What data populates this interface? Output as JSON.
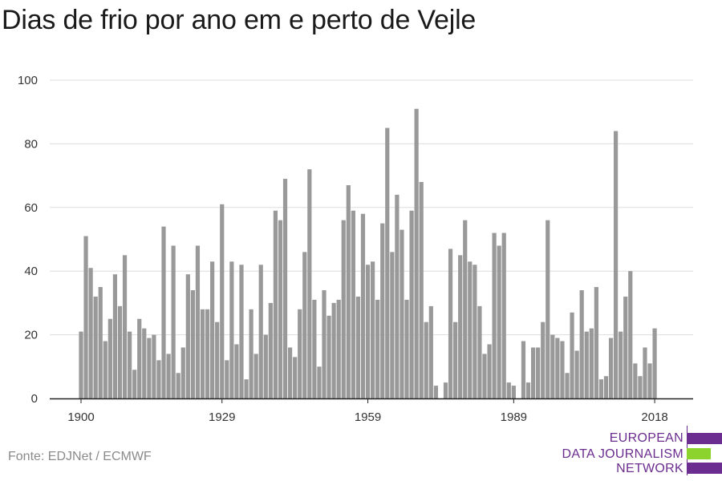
{
  "title": "Dias de frio por ano em e perto de Vejle",
  "source": "Fonte: EDJNet / ECMWF",
  "logo": {
    "lines": [
      "EUROPEAN",
      "DATA JOURNALISM",
      "NETWORK"
    ],
    "colors": [
      "#6b2d8f",
      "#8cd32e",
      "#6b2d8f"
    ]
  },
  "chart_data": {
    "type": "bar",
    "title": "Dias de frio por ano em e perto de Vejle",
    "xlabel": "",
    "ylabel": "",
    "ylim": [
      0,
      100
    ],
    "yticks": [
      0,
      20,
      40,
      60,
      80,
      100
    ],
    "xticks": [
      1900,
      1929,
      1959,
      1989,
      2018
    ],
    "grid": true,
    "bar_color": "#999999",
    "x": [
      1900,
      1901,
      1902,
      1903,
      1904,
      1905,
      1906,
      1907,
      1908,
      1909,
      1910,
      1911,
      1912,
      1913,
      1914,
      1915,
      1916,
      1917,
      1918,
      1919,
      1920,
      1921,
      1922,
      1923,
      1924,
      1925,
      1926,
      1927,
      1928,
      1929,
      1930,
      1931,
      1932,
      1933,
      1934,
      1935,
      1936,
      1937,
      1938,
      1939,
      1940,
      1941,
      1942,
      1943,
      1944,
      1945,
      1946,
      1947,
      1948,
      1949,
      1950,
      1951,
      1952,
      1953,
      1954,
      1955,
      1956,
      1957,
      1958,
      1959,
      1960,
      1961,
      1962,
      1963,
      1964,
      1965,
      1966,
      1967,
      1968,
      1969,
      1970,
      1971,
      1972,
      1973,
      1974,
      1975,
      1976,
      1977,
      1978,
      1979,
      1980,
      1981,
      1982,
      1983,
      1984,
      1985,
      1986,
      1987,
      1988,
      1989,
      1990,
      1991,
      1992,
      1993,
      1994,
      1995,
      1996,
      1997,
      1998,
      1999,
      2000,
      2001,
      2002,
      2003,
      2004,
      2005,
      2006,
      2007,
      2008,
      2009,
      2010,
      2011,
      2012,
      2013,
      2014,
      2015,
      2016,
      2017,
      2018
    ],
    "values": [
      21,
      51,
      41,
      32,
      35,
      18,
      25,
      39,
      29,
      45,
      21,
      9,
      25,
      22,
      19,
      20,
      12,
      54,
      14,
      48,
      8,
      16,
      39,
      34,
      48,
      28,
      28,
      43,
      24,
      61,
      12,
      43,
      17,
      42,
      6,
      28,
      14,
      42,
      20,
      30,
      59,
      56,
      69,
      16,
      13,
      28,
      46,
      72,
      31,
      10,
      34,
      26,
      30,
      31,
      56,
      67,
      59,
      32,
      58,
      42,
      43,
      31,
      55,
      85,
      46,
      64,
      53,
      31,
      59,
      91,
      68,
      24,
      29,
      4,
      0,
      5,
      47,
      24,
      45,
      56,
      43,
      42,
      29,
      14,
      17,
      52,
      48,
      52,
      5,
      4,
      0,
      18,
      5,
      16,
      16,
      24,
      56,
      20,
      19,
      18,
      8,
      27,
      15,
      34,
      21,
      22,
      35,
      6,
      7,
      19,
      84,
      21,
      32,
      40,
      11,
      7,
      16,
      11,
      22
    ]
  }
}
